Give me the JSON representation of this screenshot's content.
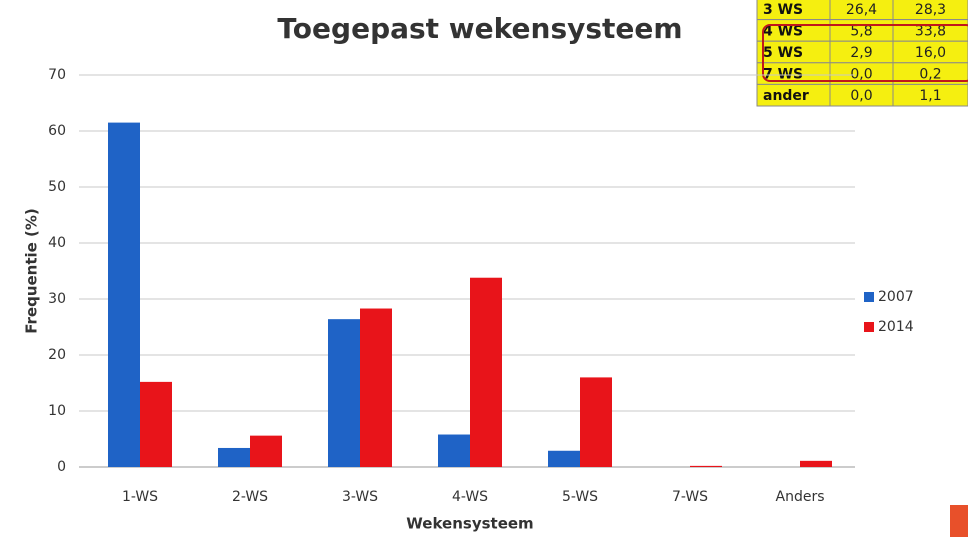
{
  "chart_data": {
    "type": "bar",
    "title": "Toegepast wekensysteem",
    "x_label": "Wekensysteem",
    "y_label": "Frequentie (%)",
    "categories": [
      "1-WS",
      "2-WS",
      "3-WS",
      "4-WS",
      "5-WS",
      "7-WS",
      "Anders"
    ],
    "series": [
      {
        "name": "2007",
        "color": "#1f63c6",
        "values": [
          61.5,
          3.4,
          26.4,
          5.8,
          2.9,
          0.0,
          0.0
        ]
      },
      {
        "name": "2014",
        "color": "#e8141a",
        "values": [
          15.2,
          5.6,
          28.3,
          33.8,
          16.0,
          0.2,
          1.1
        ]
      }
    ],
    "ylim": [
      0,
      70
    ],
    "yticks": [
      0,
      10,
      20,
      30,
      40,
      50,
      60,
      70
    ],
    "grid": true,
    "legend": "right"
  },
  "table": {
    "rows": [
      [
        "3 WS",
        "26,4",
        "28,3"
      ],
      [
        "4 WS",
        "5,8",
        "33,8"
      ],
      [
        "5 WS",
        "2,9",
        "16,0"
      ],
      [
        "7 WS",
        "0,0",
        "0,2"
      ],
      [
        "ander",
        "0,0",
        "1,1"
      ]
    ]
  }
}
